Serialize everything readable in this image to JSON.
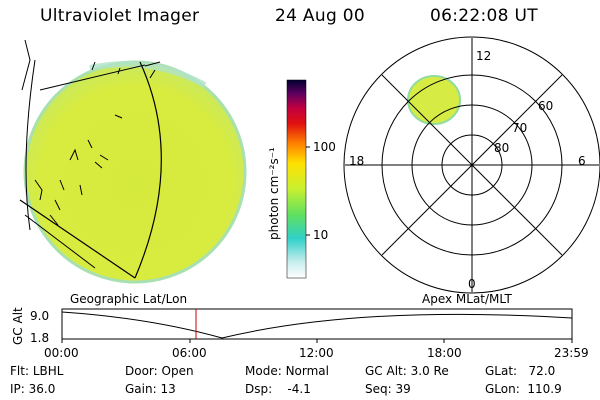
{
  "header": {
    "title": "Ultraviolet Imager",
    "date": "24 Aug 00",
    "time": "06:22:08 UT"
  },
  "colorbar": {
    "unit_label": "photon cm⁻²s⁻¹",
    "ticks": [
      "100",
      "10"
    ]
  },
  "polar_plot": {
    "mlt_labels": [
      "12",
      "18",
      "6",
      "0"
    ],
    "mlat_labels": [
      "60",
      "70",
      "80"
    ]
  },
  "timeline": {
    "left_title": "Geographic Lat/Lon",
    "right_title": "Apex MLat/MLT",
    "y_axis_label": "GC Alt",
    "y_ticks": [
      "9.0",
      "1.8"
    ],
    "x_ticks": [
      "00:00",
      "06:00",
      "12:00",
      "18:00",
      "23:59"
    ]
  },
  "status": {
    "row1": [
      {
        "key": "Flt:",
        "value": "LBHL"
      },
      {
        "key": "Door:",
        "value": "Open"
      },
      {
        "key": "Mode:",
        "value": "Normal"
      },
      {
        "key": "GC Alt:",
        "value": "3.0 Re"
      },
      {
        "key": "GLat:",
        "value": "72.0"
      }
    ],
    "row2": [
      {
        "key": "IP:",
        "value": "36.0"
      },
      {
        "key": "Gain:",
        "value": "13"
      },
      {
        "key": "Dsp:",
        "value": "-4.1"
      },
      {
        "key": "Seq:",
        "value": "39"
      },
      {
        "key": "GLon:",
        "value": "110.9"
      }
    ]
  },
  "colors": {
    "earth_disk": "#d8ec38",
    "disk_edge": "#9fe0a8",
    "marker_line": "#cc0000"
  }
}
